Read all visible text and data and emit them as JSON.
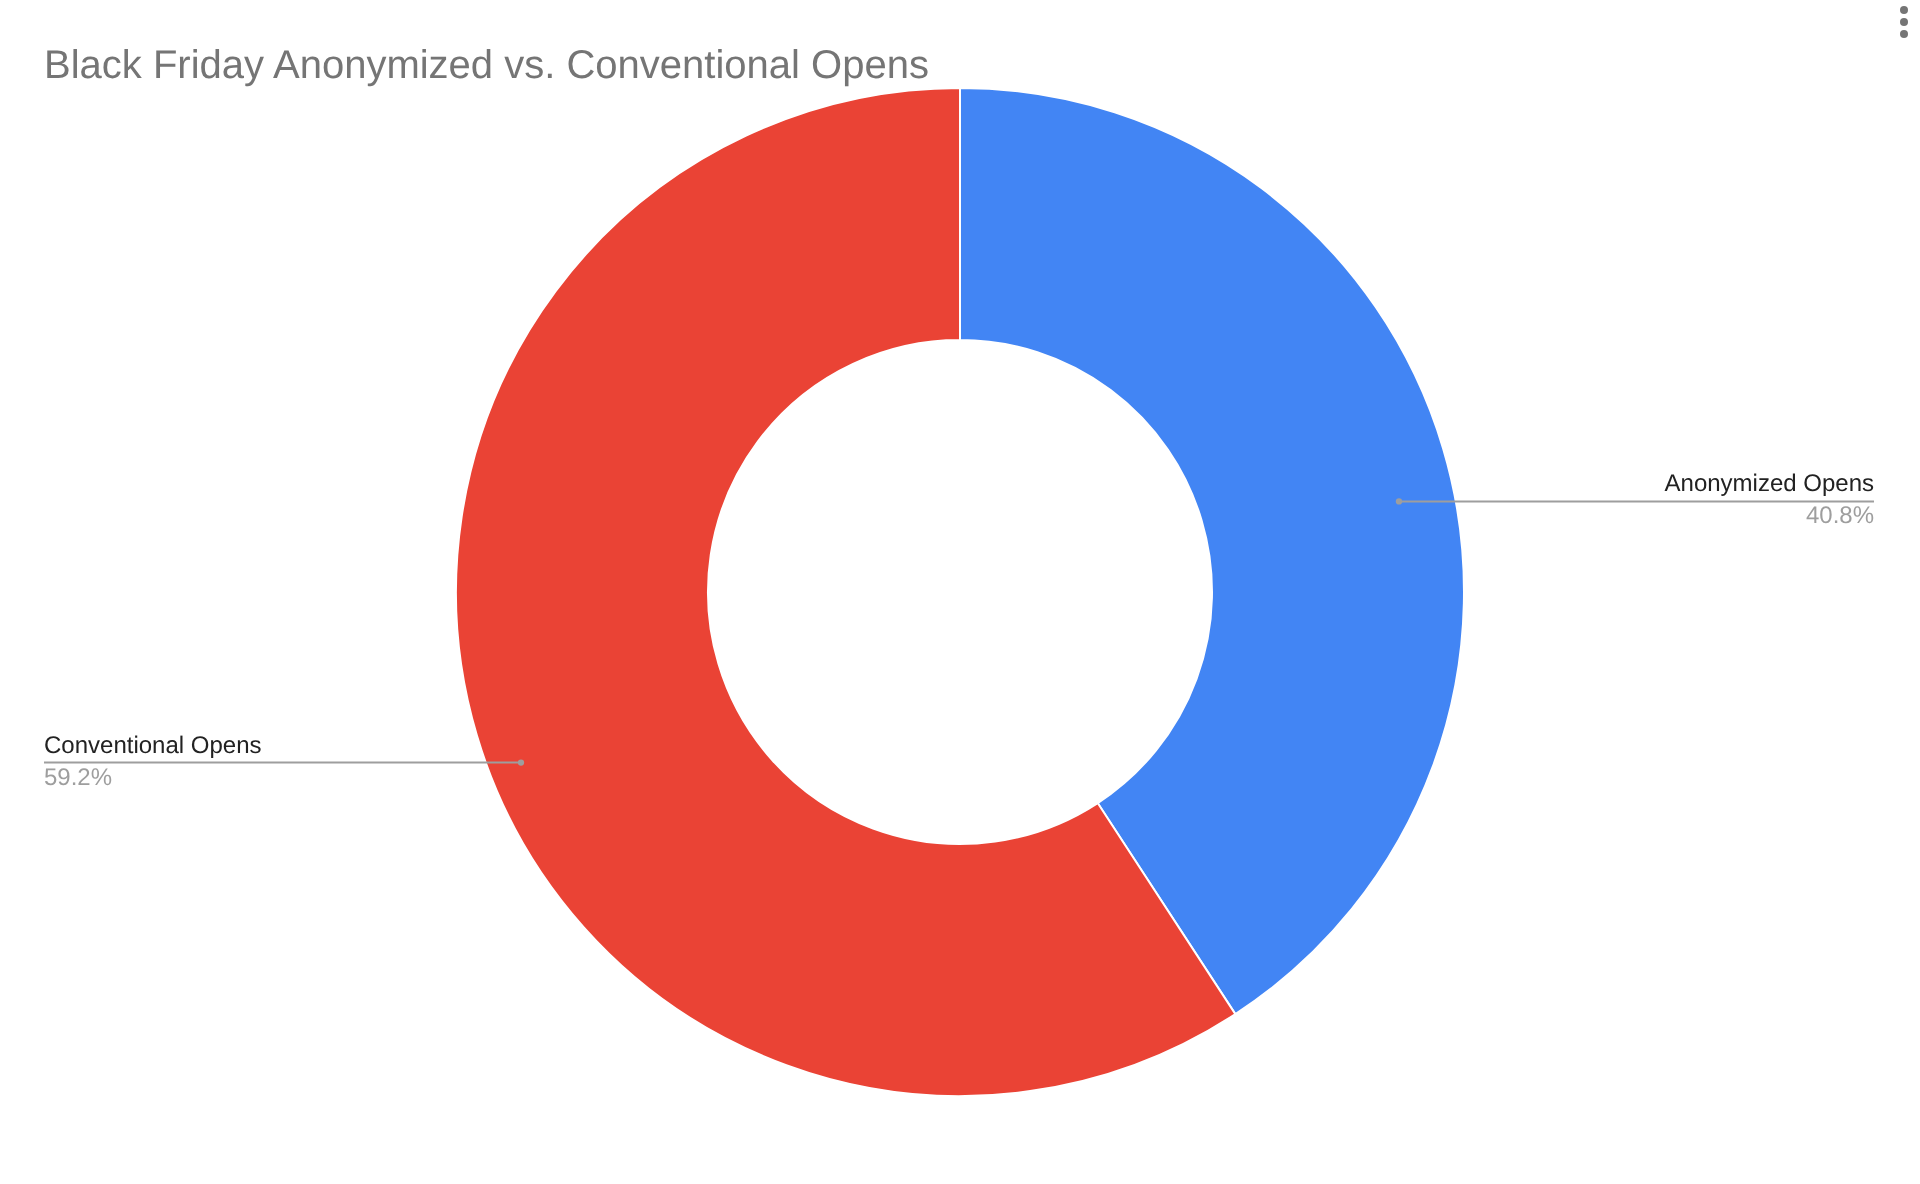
{
  "chart_data": {
    "type": "donut",
    "title": "Black Friday Anonymized vs. Conventional Opens",
    "categories": [
      "Anonymized Opens",
      "Conventional Opens"
    ],
    "values": [
      40.8,
      59.2
    ],
    "colors": [
      "#4285f4",
      "#ea4335"
    ],
    "value_labels": [
      "40.8%",
      "59.2%"
    ]
  }
}
